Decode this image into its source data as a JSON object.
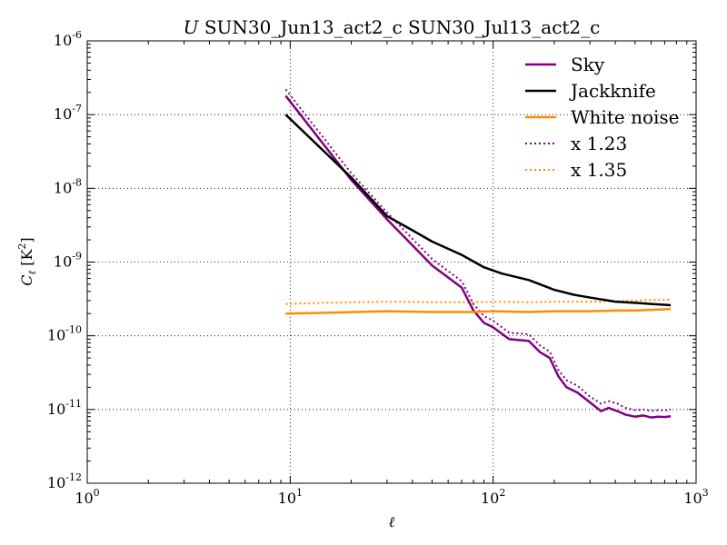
{
  "chart_data": {
    "type": "line",
    "title": "U SUN30_Jun13_act2_c SUN30_Jul13_act2_c",
    "title_prefix": "U",
    "title_rest": "SUN30_Jun13_act2_c SUN30_Jul13_act2_c",
    "xlabel": "ℓ",
    "ylabel": "C_ℓ [K²]",
    "ylabel_main": "C",
    "ylabel_sub": "ℓ",
    "ylabel_unit": "[K",
    "ylabel_unit_sup": "2",
    "ylabel_unit_end": "]",
    "x_scale": "log",
    "y_scale": "log",
    "xlim": [
      1,
      1000
    ],
    "ylim": [
      1e-12,
      1e-06
    ],
    "grid": true,
    "legend_position": "top-right",
    "x_ticks": [
      {
        "value": 1,
        "base": "10",
        "exp": "0"
      },
      {
        "value": 10,
        "base": "10",
        "exp": "1"
      },
      {
        "value": 100,
        "base": "10",
        "exp": "2"
      },
      {
        "value": 1000,
        "base": "10",
        "exp": "3"
      }
    ],
    "y_ticks": [
      {
        "value": 1e-12,
        "base": "10",
        "exp": "-12"
      },
      {
        "value": 1e-11,
        "base": "10",
        "exp": "-11"
      },
      {
        "value": 1e-10,
        "base": "10",
        "exp": "-10"
      },
      {
        "value": 1e-09,
        "base": "10",
        "exp": "-9"
      },
      {
        "value": 1e-08,
        "base": "10",
        "exp": "-8"
      },
      {
        "value": 1e-07,
        "base": "10",
        "exp": "-7"
      },
      {
        "value": 1e-06,
        "base": "10",
        "exp": "-6"
      }
    ],
    "series": [
      {
        "name": "Sky",
        "color": "#800080",
        "style": "solid",
        "points": [
          [
            9.5,
            1.8e-07
          ],
          [
            20,
            1.3e-08
          ],
          [
            30,
            3.8e-09
          ],
          [
            50,
            9e-10
          ],
          [
            70,
            4.5e-10
          ],
          [
            80,
            2.2e-10
          ],
          [
            90,
            1.5e-10
          ],
          [
            100,
            1.3e-10
          ],
          [
            120,
            9e-11
          ],
          [
            150,
            8.5e-11
          ],
          [
            170,
            6e-11
          ],
          [
            190,
            5e-11
          ],
          [
            210,
            2.8e-11
          ],
          [
            230,
            2e-11
          ],
          [
            260,
            1.7e-11
          ],
          [
            300,
            1.25e-11
          ],
          [
            340,
            9.5e-12
          ],
          [
            370,
            1.05e-11
          ],
          [
            410,
            9.5e-12
          ],
          [
            450,
            8.5e-12
          ],
          [
            500,
            8e-12
          ],
          [
            550,
            8.3e-12
          ],
          [
            600,
            7.8e-12
          ],
          [
            650,
            8e-12
          ],
          [
            700,
            7.9e-12
          ],
          [
            750,
            8.1e-12
          ]
        ]
      },
      {
        "name": "Jackknife",
        "color": "#000000",
        "style": "solid",
        "points": [
          [
            9.5,
            1e-07
          ],
          [
            15,
            3e-08
          ],
          [
            20,
            1.4e-08
          ],
          [
            30,
            4.2e-09
          ],
          [
            40,
            2.7e-09
          ],
          [
            50,
            1.9e-09
          ],
          [
            70,
            1.25e-09
          ],
          [
            90,
            8.5e-10
          ],
          [
            110,
            7e-10
          ],
          [
            150,
            5.7e-10
          ],
          [
            200,
            4.2e-10
          ],
          [
            250,
            3.6e-10
          ],
          [
            300,
            3.3e-10
          ],
          [
            400,
            2.9e-10
          ],
          [
            500,
            2.8e-10
          ],
          [
            600,
            2.7e-10
          ],
          [
            750,
            2.6e-10
          ]
        ]
      },
      {
        "name": "White noise",
        "color": "#ff8c00",
        "style": "solid",
        "points": [
          [
            9.5,
            2e-10
          ],
          [
            15,
            2.05e-10
          ],
          [
            30,
            2.15e-10
          ],
          [
            50,
            2.1e-10
          ],
          [
            80,
            2.1e-10
          ],
          [
            100,
            2.15e-10
          ],
          [
            150,
            2.1e-10
          ],
          [
            200,
            2.15e-10
          ],
          [
            300,
            2.15e-10
          ],
          [
            400,
            2.2e-10
          ],
          [
            500,
            2.2e-10
          ],
          [
            600,
            2.25e-10
          ],
          [
            750,
            2.3e-10
          ]
        ]
      },
      {
        "name": "x 1.23",
        "color": "#800080",
        "style": "dotted",
        "points": [
          [
            9.5,
            2.2e-07
          ],
          [
            20,
            1.6e-08
          ],
          [
            30,
            4.7e-09
          ],
          [
            50,
            1.1e-09
          ],
          [
            70,
            5.5e-10
          ],
          [
            80,
            2.7e-10
          ],
          [
            90,
            1.85e-10
          ],
          [
            100,
            1.6e-10
          ],
          [
            120,
            1.1e-10
          ],
          [
            150,
            1.05e-10
          ],
          [
            170,
            7.4e-11
          ],
          [
            190,
            6.1e-11
          ],
          [
            210,
            3.4e-11
          ],
          [
            230,
            2.5e-11
          ],
          [
            260,
            2.1e-11
          ],
          [
            300,
            1.5e-11
          ],
          [
            340,
            1.2e-11
          ],
          [
            370,
            1.3e-11
          ],
          [
            410,
            1.2e-11
          ],
          [
            450,
            1.05e-11
          ],
          [
            500,
            9.8e-12
          ],
          [
            550,
            1e-11
          ],
          [
            600,
            9.6e-12
          ],
          [
            650,
            9.8e-12
          ],
          [
            700,
            9.7e-12
          ],
          [
            750,
            1e-11
          ]
        ]
      },
      {
        "name": "x 1.35",
        "color": "#ff8c00",
        "style": "dotted",
        "points": [
          [
            9.5,
            2.7e-10
          ],
          [
            15,
            2.8e-10
          ],
          [
            30,
            2.9e-10
          ],
          [
            50,
            2.85e-10
          ],
          [
            80,
            2.85e-10
          ],
          [
            100,
            2.9e-10
          ],
          [
            150,
            2.85e-10
          ],
          [
            200,
            2.9e-10
          ],
          [
            300,
            2.9e-10
          ],
          [
            400,
            2.95e-10
          ],
          [
            500,
            3e-10
          ],
          [
            600,
            3.05e-10
          ],
          [
            750,
            3.1e-10
          ]
        ]
      }
    ]
  }
}
